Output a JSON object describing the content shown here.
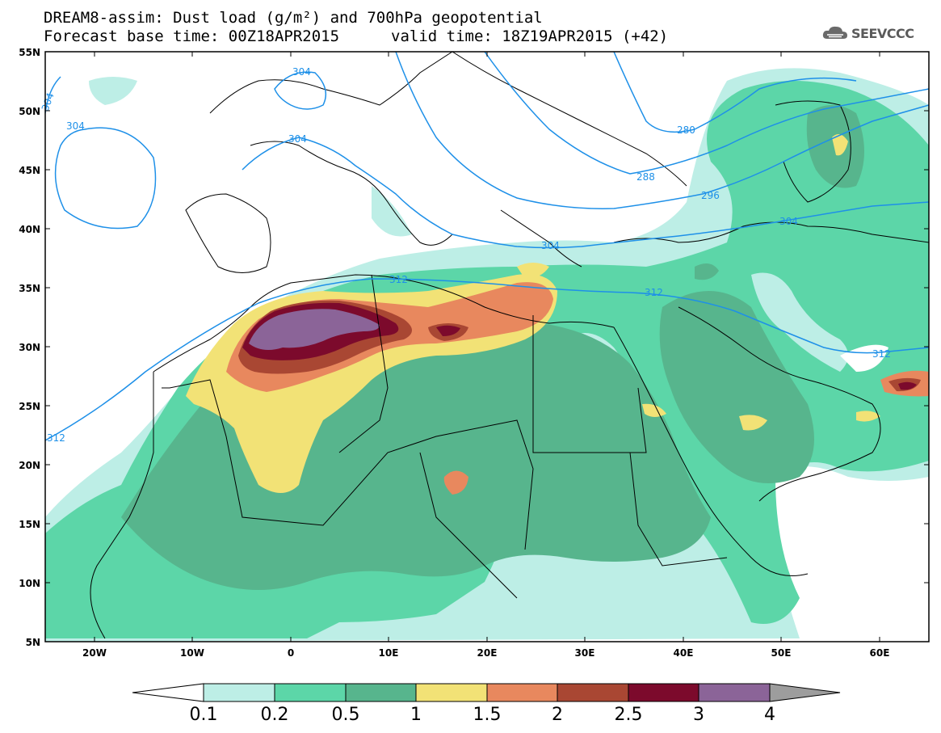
{
  "header": {
    "line1": "DREAM8-assim: Dust load (g/m²) and 700hPa geopotential",
    "base_time": "Forecast base time: 00Z18APR2015",
    "valid_time": "valid time: 18Z19APR2015 (+42)"
  },
  "logo": {
    "icon": "cloud-icon",
    "text": "SEEVCCC"
  },
  "axes": {
    "lat_labels": [
      "55N",
      "50N",
      "45N",
      "40N",
      "35N",
      "30N",
      "25N",
      "20N",
      "15N",
      "10N",
      "5N"
    ],
    "lon_labels": [
      "20W",
      "10W",
      "0",
      "10E",
      "20E",
      "30E",
      "40E",
      "50E",
      "60E"
    ],
    "lat_range": [
      5,
      55
    ],
    "lon_range": [
      -25,
      65
    ]
  },
  "contours": {
    "labels": [
      "304",
      "304",
      "304",
      "304",
      "280",
      "288",
      "296",
      "304",
      "304",
      "312",
      "312",
      "312",
      "312"
    ]
  },
  "colorbar": {
    "labels": [
      "0.1",
      "0.2",
      "0.5",
      "1",
      "1.5",
      "2",
      "2.5",
      "3",
      "4"
    ],
    "colors": [
      "#ffffff",
      "#bdeee6",
      "#5cd6a8",
      "#57b58d",
      "#f2e276",
      "#e8885e",
      "#a94733",
      "#7c0a2c",
      "#8b6498",
      "#9d9d9d"
    ]
  },
  "colors": {
    "geopotential_lines": "#1e90e8",
    "coastline": "#000000"
  }
}
